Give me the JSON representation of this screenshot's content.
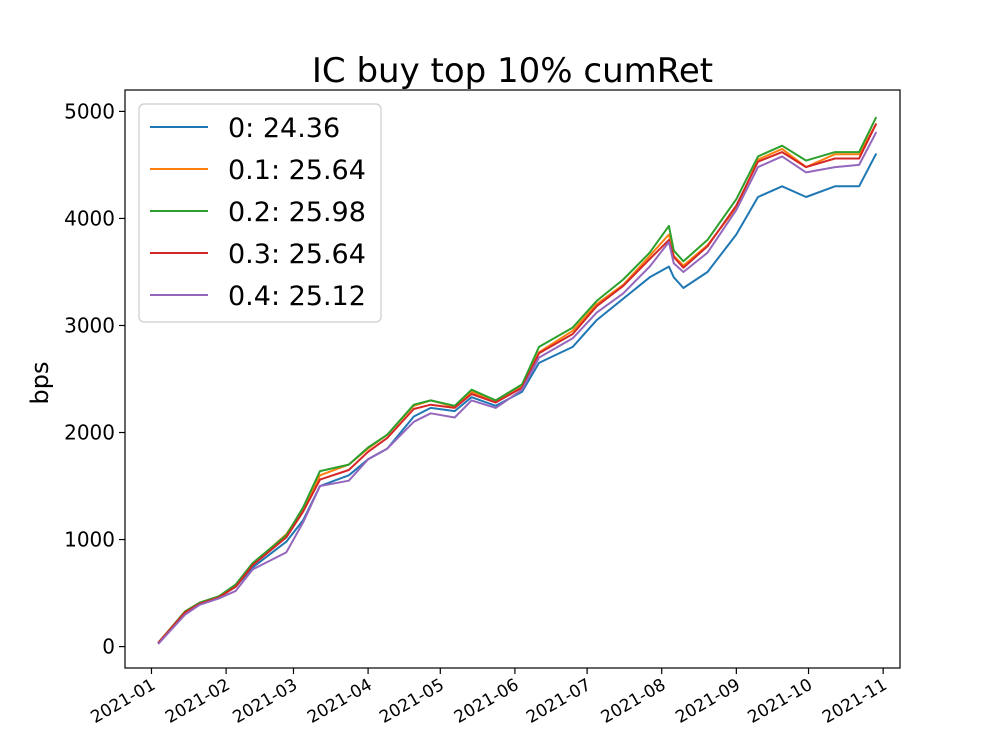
{
  "chart_data": {
    "type": "line",
    "title": "IC buy top 10% cumRet",
    "xlabel": "",
    "ylabel": "bps",
    "xlim": [
      "2020-12-21",
      "2021-11-08"
    ],
    "ylim": [
      -200,
      5200
    ],
    "x_ticks": [
      "2021-01",
      "2021-02",
      "2021-03",
      "2021-04",
      "2021-05",
      "2021-06",
      "2021-07",
      "2021-08",
      "2021-09",
      "2021-10",
      "2021-11"
    ],
    "y_ticks": [
      0,
      1000,
      2000,
      3000,
      4000,
      5000
    ],
    "legend_position": "upper left",
    "grid": false,
    "series": [
      {
        "name": "0: 24.36",
        "color": "#1f77b4",
        "points": [
          [
            "2021-01-04",
            40
          ],
          [
            "2021-01-15",
            320
          ],
          [
            "2021-01-21",
            400
          ],
          [
            "2021-01-29",
            460
          ],
          [
            "2021-02-05",
            560
          ],
          [
            "2021-02-12",
            740
          ],
          [
            "2021-02-26",
            980
          ],
          [
            "2021-03-05",
            1180
          ],
          [
            "2021-03-12",
            1500
          ],
          [
            "2021-03-24",
            1600
          ],
          [
            "2021-04-01",
            1750
          ],
          [
            "2021-04-09",
            1850
          ],
          [
            "2021-04-20",
            2150
          ],
          [
            "2021-04-27",
            2230
          ],
          [
            "2021-05-07",
            2200
          ],
          [
            "2021-05-14",
            2330
          ],
          [
            "2021-05-24",
            2250
          ],
          [
            "2021-06-04",
            2380
          ],
          [
            "2021-06-11",
            2650
          ],
          [
            "2021-06-25",
            2800
          ],
          [
            "2021-07-05",
            3050
          ],
          [
            "2021-07-16",
            3250
          ],
          [
            "2021-07-27",
            3450
          ],
          [
            "2021-08-04",
            3550
          ],
          [
            "2021-08-06",
            3450
          ],
          [
            "2021-08-10",
            3350
          ],
          [
            "2021-08-20",
            3500
          ],
          [
            "2021-09-01",
            3850
          ],
          [
            "2021-09-10",
            4200
          ],
          [
            "2021-09-20",
            4300
          ],
          [
            "2021-09-30",
            4200
          ],
          [
            "2021-10-12",
            4300
          ],
          [
            "2021-10-22",
            4300
          ],
          [
            "2021-10-29",
            4600
          ]
        ]
      },
      {
        "name": "0.1: 25.64",
        "color": "#ff7f0e",
        "points": [
          [
            "2021-01-04",
            40
          ],
          [
            "2021-01-15",
            330
          ],
          [
            "2021-01-21",
            410
          ],
          [
            "2021-01-29",
            470
          ],
          [
            "2021-02-05",
            570
          ],
          [
            "2021-02-12",
            770
          ],
          [
            "2021-02-26",
            1050
          ],
          [
            "2021-03-05",
            1280
          ],
          [
            "2021-03-12",
            1600
          ],
          [
            "2021-03-24",
            1700
          ],
          [
            "2021-04-01",
            1850
          ],
          [
            "2021-04-09",
            1980
          ],
          [
            "2021-04-20",
            2250
          ],
          [
            "2021-04-27",
            2300
          ],
          [
            "2021-05-07",
            2240
          ],
          [
            "2021-05-14",
            2380
          ],
          [
            "2021-05-24",
            2300
          ],
          [
            "2021-06-04",
            2440
          ],
          [
            "2021-06-11",
            2750
          ],
          [
            "2021-06-25",
            2950
          ],
          [
            "2021-07-05",
            3200
          ],
          [
            "2021-07-16",
            3380
          ],
          [
            "2021-07-27",
            3650
          ],
          [
            "2021-08-04",
            3850
          ],
          [
            "2021-08-06",
            3650
          ],
          [
            "2021-08-10",
            3560
          ],
          [
            "2021-08-20",
            3750
          ],
          [
            "2021-09-01",
            4100
          ],
          [
            "2021-09-10",
            4550
          ],
          [
            "2021-09-20",
            4650
          ],
          [
            "2021-09-30",
            4480
          ],
          [
            "2021-10-12",
            4600
          ],
          [
            "2021-10-22",
            4600
          ],
          [
            "2021-10-29",
            4880
          ]
        ]
      },
      {
        "name": "0.2: 25.98",
        "color": "#2ca02c",
        "points": [
          [
            "2021-01-04",
            40
          ],
          [
            "2021-01-15",
            330
          ],
          [
            "2021-01-21",
            410
          ],
          [
            "2021-01-29",
            470
          ],
          [
            "2021-02-05",
            580
          ],
          [
            "2021-02-12",
            780
          ],
          [
            "2021-02-26",
            1040
          ],
          [
            "2021-03-05",
            1300
          ],
          [
            "2021-03-12",
            1640
          ],
          [
            "2021-03-24",
            1700
          ],
          [
            "2021-04-01",
            1860
          ],
          [
            "2021-04-09",
            1980
          ],
          [
            "2021-04-20",
            2260
          ],
          [
            "2021-04-27",
            2300
          ],
          [
            "2021-05-07",
            2250
          ],
          [
            "2021-05-14",
            2400
          ],
          [
            "2021-05-24",
            2300
          ],
          [
            "2021-06-04",
            2450
          ],
          [
            "2021-06-11",
            2800
          ],
          [
            "2021-06-25",
            2980
          ],
          [
            "2021-07-05",
            3230
          ],
          [
            "2021-07-16",
            3430
          ],
          [
            "2021-07-27",
            3680
          ],
          [
            "2021-08-04",
            3930
          ],
          [
            "2021-08-06",
            3700
          ],
          [
            "2021-08-10",
            3600
          ],
          [
            "2021-08-20",
            3800
          ],
          [
            "2021-09-01",
            4180
          ],
          [
            "2021-09-10",
            4580
          ],
          [
            "2021-09-20",
            4680
          ],
          [
            "2021-09-30",
            4540
          ],
          [
            "2021-10-12",
            4620
          ],
          [
            "2021-10-22",
            4620
          ],
          [
            "2021-10-29",
            4940
          ]
        ]
      },
      {
        "name": "0.3: 25.64",
        "color": "#d62728",
        "points": [
          [
            "2021-01-04",
            40
          ],
          [
            "2021-01-15",
            320
          ],
          [
            "2021-01-21",
            400
          ],
          [
            "2021-01-29",
            460
          ],
          [
            "2021-02-05",
            560
          ],
          [
            "2021-02-12",
            760
          ],
          [
            "2021-02-26",
            1020
          ],
          [
            "2021-03-05",
            1260
          ],
          [
            "2021-03-12",
            1560
          ],
          [
            "2021-03-24",
            1650
          ],
          [
            "2021-04-01",
            1820
          ],
          [
            "2021-04-09",
            1950
          ],
          [
            "2021-04-20",
            2220
          ],
          [
            "2021-04-27",
            2260
          ],
          [
            "2021-05-07",
            2230
          ],
          [
            "2021-05-14",
            2360
          ],
          [
            "2021-05-24",
            2280
          ],
          [
            "2021-06-04",
            2420
          ],
          [
            "2021-06-11",
            2740
          ],
          [
            "2021-06-25",
            2920
          ],
          [
            "2021-07-05",
            3180
          ],
          [
            "2021-07-16",
            3370
          ],
          [
            "2021-07-27",
            3620
          ],
          [
            "2021-08-04",
            3800
          ],
          [
            "2021-08-06",
            3640
          ],
          [
            "2021-08-10",
            3540
          ],
          [
            "2021-08-20",
            3740
          ],
          [
            "2021-09-01",
            4120
          ],
          [
            "2021-09-10",
            4530
          ],
          [
            "2021-09-20",
            4620
          ],
          [
            "2021-09-30",
            4480
          ],
          [
            "2021-10-12",
            4560
          ],
          [
            "2021-10-22",
            4560
          ],
          [
            "2021-10-29",
            4880
          ]
        ]
      },
      {
        "name": "0.4: 25.12",
        "color": "#9467bd",
        "points": [
          [
            "2021-01-04",
            30
          ],
          [
            "2021-01-15",
            300
          ],
          [
            "2021-01-21",
            390
          ],
          [
            "2021-01-29",
            450
          ],
          [
            "2021-02-05",
            520
          ],
          [
            "2021-02-12",
            720
          ],
          [
            "2021-02-26",
            880
          ],
          [
            "2021-03-05",
            1160
          ],
          [
            "2021-03-12",
            1500
          ],
          [
            "2021-03-24",
            1550
          ],
          [
            "2021-04-01",
            1750
          ],
          [
            "2021-04-09",
            1850
          ],
          [
            "2021-04-20",
            2100
          ],
          [
            "2021-04-27",
            2180
          ],
          [
            "2021-05-07",
            2140
          ],
          [
            "2021-05-14",
            2300
          ],
          [
            "2021-05-24",
            2230
          ],
          [
            "2021-06-04",
            2400
          ],
          [
            "2021-06-11",
            2700
          ],
          [
            "2021-06-25",
            2880
          ],
          [
            "2021-07-05",
            3120
          ],
          [
            "2021-07-16",
            3300
          ],
          [
            "2021-07-27",
            3550
          ],
          [
            "2021-08-04",
            3780
          ],
          [
            "2021-08-06",
            3580
          ],
          [
            "2021-08-10",
            3500
          ],
          [
            "2021-08-20",
            3680
          ],
          [
            "2021-09-01",
            4080
          ],
          [
            "2021-09-10",
            4480
          ],
          [
            "2021-09-20",
            4580
          ],
          [
            "2021-09-30",
            4430
          ],
          [
            "2021-10-12",
            4480
          ],
          [
            "2021-10-22",
            4500
          ],
          [
            "2021-10-29",
            4800
          ]
        ]
      }
    ]
  }
}
